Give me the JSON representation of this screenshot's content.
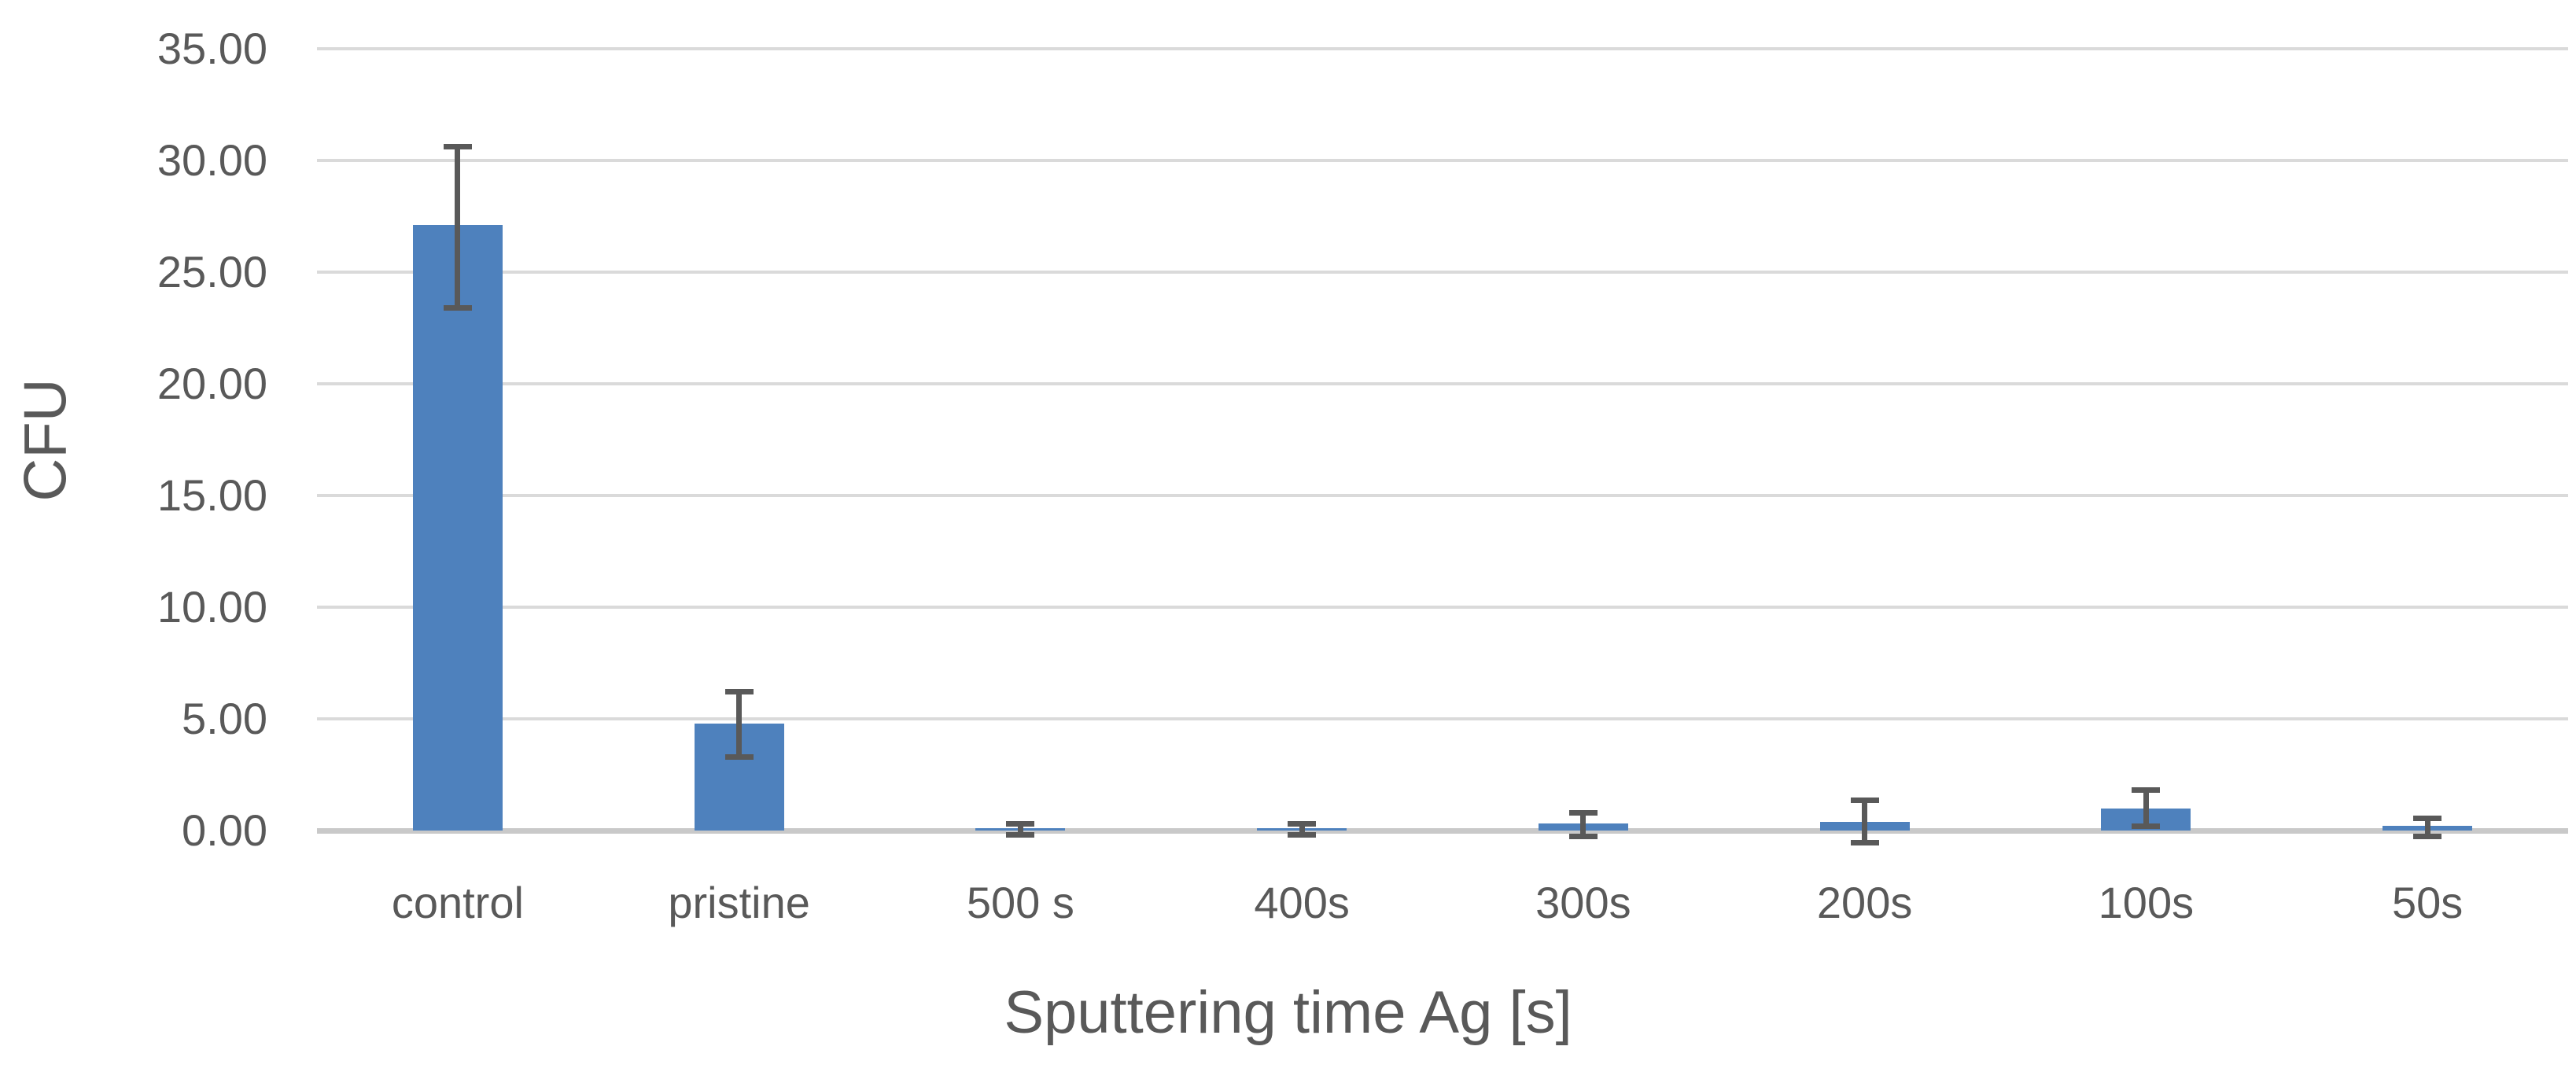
{
  "chart_data": {
    "type": "bar",
    "title": "",
    "xlabel": "Sputtering time Ag [s]",
    "ylabel": "CFU",
    "categories": [
      "control",
      "pristine",
      "500 s",
      "400s",
      "300s",
      "200s",
      "100s",
      "50s"
    ],
    "series": [
      {
        "name": "CFU",
        "values": [
          27.1,
          4.8,
          0.1,
          0.1,
          0.3,
          0.4,
          1.0,
          0.2
        ],
        "error_plus": [
          3.5,
          1.4,
          0.2,
          0.2,
          0.5,
          0.95,
          0.8,
          0.35
        ],
        "error_minus": [
          3.7,
          1.5,
          0.3,
          0.3,
          0.55,
          0.95,
          0.8,
          0.45
        ]
      }
    ],
    "ylim": [
      0,
      35
    ],
    "ytick_step": 5,
    "ytick_labels": [
      "0.00",
      "5.00",
      "10.00",
      "15.00",
      "20.00",
      "25.00",
      "30.00",
      "35.00"
    ],
    "grid": true,
    "legend": "none",
    "colors": {
      "bar": "#4e81bd",
      "error_bar": "#595959",
      "gridline": "#dadada",
      "zero_axis_line": "#c9c9c9",
      "text": "#595959",
      "background": "#ffffff"
    }
  }
}
